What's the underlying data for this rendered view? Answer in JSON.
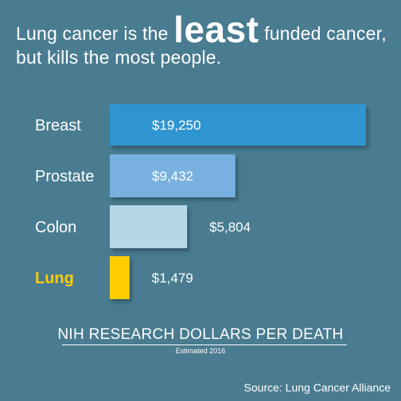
{
  "headline": {
    "part1": "Lung cancer is the ",
    "emphasis": "least",
    "part2": " funded cancer,",
    "line2": "but kills the most people."
  },
  "chart_data": {
    "type": "bar",
    "orientation": "horizontal",
    "categories": [
      "Breast",
      "Prostate",
      "Colon",
      "Lung"
    ],
    "values": [
      19250,
      9432,
      5804,
      1479
    ],
    "value_labels": [
      "$19,250",
      "$9,432",
      "$5,804",
      "$1,479"
    ],
    "bar_colors": [
      "#2e95d0",
      "#78b1df",
      "#b5d7e8",
      "#ffcc00"
    ],
    "category_label_colors": [
      "#ffffff",
      "#ffffff",
      "#ffffff",
      "#ffcc00"
    ],
    "title": "NIH RESEARCH DOLLARS PER DEATH",
    "subtitle": "Estimated 2016",
    "xlim": [
      0,
      19250
    ],
    "grid": false,
    "legend": "none"
  },
  "source": "Source: Lung Cancer Alliance"
}
